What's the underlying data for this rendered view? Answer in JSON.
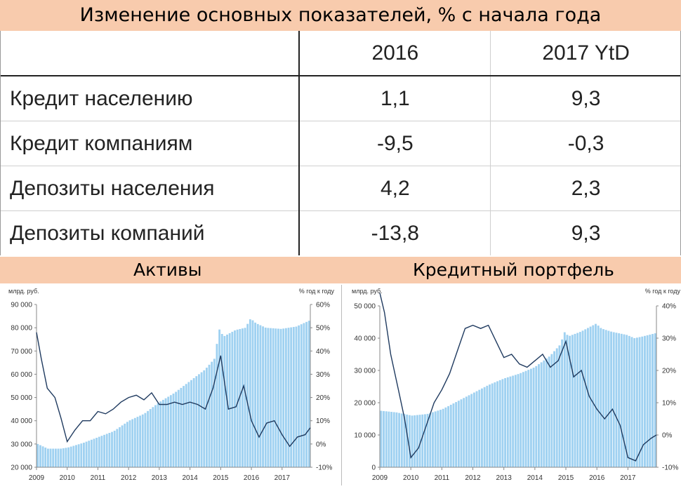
{
  "header": {
    "title": "Изменение основных показателей, % с начала года"
  },
  "table": {
    "columns": [
      "",
      "2016",
      "2017 YtD"
    ],
    "rows": [
      {
        "label": "Кредит населению",
        "v2016": "1,1",
        "v2017": "9,3"
      },
      {
        "label": "Кредит компаниям",
        "v2016": "-9,5",
        "v2017": "-0,3"
      },
      {
        "label": "Депозиты населения",
        "v2016": "4,2",
        "v2017": "2,3"
      },
      {
        "label": "Депозиты компаний",
        "v2016": "-13,8",
        "v2017": "9,3"
      }
    ]
  },
  "sections": {
    "left_title": "Активы",
    "right_title": "Кредитный портфель"
  },
  "chart_data": [
    {
      "type": "bar",
      "name": "Активы",
      "left_unit": "млрд. руб.",
      "right_unit": "% год к году",
      "y_left_range": [
        20000,
        90000
      ],
      "y_left_ticks": [
        "20 000",
        "30 000",
        "40 000",
        "50 000",
        "60 000",
        "70 000",
        "80 000",
        "90 000"
      ],
      "y_right_range": [
        -10,
        60
      ],
      "y_right_ticks": [
        "-10%",
        "0%",
        "10%",
        "20%",
        "30%",
        "40%",
        "50%",
        "60%"
      ],
      "x_range": [
        2009,
        2017.92
      ],
      "x_ticks": [
        "2009",
        "2010",
        "2011",
        "2012",
        "2013",
        "2014",
        "2015",
        "2016",
        "2017"
      ],
      "bar_anchors": [
        [
          2009,
          30000
        ],
        [
          2009.33,
          28000
        ],
        [
          2009.75,
          28000
        ],
        [
          2010,
          28500
        ],
        [
          2010.5,
          30500
        ],
        [
          2011,
          33000
        ],
        [
          2011.5,
          35500
        ],
        [
          2012,
          40000
        ],
        [
          2012.5,
          43000
        ],
        [
          2013,
          48000
        ],
        [
          2013.5,
          52000
        ],
        [
          2014,
          57000
        ],
        [
          2014.5,
          62000
        ],
        [
          2014.83,
          67000
        ],
        [
          2014.9,
          74000
        ],
        [
          2015,
          81000
        ],
        [
          2015.08,
          76000
        ],
        [
          2015.5,
          79000
        ],
        [
          2015.83,
          80000
        ],
        [
          2016,
          84000
        ],
        [
          2016.17,
          82000
        ],
        [
          2016.5,
          80000
        ],
        [
          2017,
          79500
        ],
        [
          2017.5,
          80500
        ],
        [
          2017.92,
          83000
        ]
      ],
      "line_points": [
        [
          2009,
          48
        ],
        [
          2009.15,
          37
        ],
        [
          2009.35,
          24
        ],
        [
          2009.6,
          20
        ],
        [
          2009.8,
          11
        ],
        [
          2010,
          1
        ],
        [
          2010.25,
          6
        ],
        [
          2010.5,
          10
        ],
        [
          2010.75,
          10
        ],
        [
          2011,
          14
        ],
        [
          2011.25,
          13
        ],
        [
          2011.5,
          15
        ],
        [
          2011.75,
          18
        ],
        [
          2012,
          20
        ],
        [
          2012.25,
          21
        ],
        [
          2012.5,
          19
        ],
        [
          2012.75,
          22
        ],
        [
          2013,
          17
        ],
        [
          2013.25,
          17
        ],
        [
          2013.5,
          18
        ],
        [
          2013.75,
          17
        ],
        [
          2014,
          18
        ],
        [
          2014.25,
          17
        ],
        [
          2014.5,
          15
        ],
        [
          2014.75,
          24
        ],
        [
          2015,
          38
        ],
        [
          2015.25,
          15
        ],
        [
          2015.5,
          16
        ],
        [
          2015.75,
          25
        ],
        [
          2016,
          10
        ],
        [
          2016.25,
          3
        ],
        [
          2016.5,
          9
        ],
        [
          2016.75,
          10
        ],
        [
          2017,
          4
        ],
        [
          2017.25,
          -1
        ],
        [
          2017.5,
          3
        ],
        [
          2017.75,
          4
        ],
        [
          2017.92,
          7
        ]
      ]
    },
    {
      "type": "bar",
      "name": "Кредитный портфель",
      "left_unit": "млрд. руб.",
      "right_unit": "% год к году",
      "y_left_range": [
        0,
        50000
      ],
      "y_left_ticks": [
        "0",
        "10 000",
        "20 000",
        "30 000",
        "40 000",
        "50 000"
      ],
      "y_right_range": [
        -10,
        40
      ],
      "y_right_ticks": [
        "-10%",
        "0%",
        "10%",
        "20%",
        "30%",
        "40%"
      ],
      "x_range": [
        2009,
        2017.92
      ],
      "x_ticks": [
        "2009",
        "2010",
        "2011",
        "2012",
        "2013",
        "2014",
        "2015",
        "2016",
        "2017"
      ],
      "bar_anchors": [
        [
          2009,
          17500
        ],
        [
          2009.5,
          17000
        ],
        [
          2010,
          16000
        ],
        [
          2010.5,
          16500
        ],
        [
          2011,
          18000
        ],
        [
          2011.5,
          20500
        ],
        [
          2012,
          23000
        ],
        [
          2012.5,
          25500
        ],
        [
          2013,
          27500
        ],
        [
          2013.5,
          29000
        ],
        [
          2014,
          31000
        ],
        [
          2014.5,
          34500
        ],
        [
          2014.83,
          38000
        ],
        [
          2015,
          42500
        ],
        [
          2015.08,
          40500
        ],
        [
          2015.5,
          42000
        ],
        [
          2016,
          44500
        ],
        [
          2016.17,
          43000
        ],
        [
          2016.5,
          42000
        ],
        [
          2017,
          41000
        ],
        [
          2017.25,
          40000
        ],
        [
          2017.5,
          40500
        ],
        [
          2017.92,
          41500
        ]
      ],
      "line_points": [
        [
          2009,
          44
        ],
        [
          2009.15,
          38
        ],
        [
          2009.35,
          25
        ],
        [
          2009.6,
          14
        ],
        [
          2009.8,
          5
        ],
        [
          2010,
          -7
        ],
        [
          2010.25,
          -4
        ],
        [
          2010.5,
          3
        ],
        [
          2010.75,
          10
        ],
        [
          2011,
          14
        ],
        [
          2011.25,
          19
        ],
        [
          2011.5,
          26
        ],
        [
          2011.75,
          33
        ],
        [
          2012,
          34
        ],
        [
          2012.25,
          33
        ],
        [
          2012.5,
          34
        ],
        [
          2012.75,
          29
        ],
        [
          2013,
          24
        ],
        [
          2013.25,
          25
        ],
        [
          2013.5,
          22
        ],
        [
          2013.75,
          21
        ],
        [
          2014,
          23
        ],
        [
          2014.25,
          25
        ],
        [
          2014.5,
          21
        ],
        [
          2014.75,
          23
        ],
        [
          2015,
          29
        ],
        [
          2015.25,
          18
        ],
        [
          2015.5,
          20
        ],
        [
          2015.75,
          12
        ],
        [
          2016,
          8
        ],
        [
          2016.25,
          5
        ],
        [
          2016.5,
          8
        ],
        [
          2016.75,
          3
        ],
        [
          2017,
          -7
        ],
        [
          2017.25,
          -8
        ],
        [
          2017.5,
          -3
        ],
        [
          2017.75,
          -1
        ],
        [
          2017.92,
          0
        ]
      ]
    }
  ]
}
